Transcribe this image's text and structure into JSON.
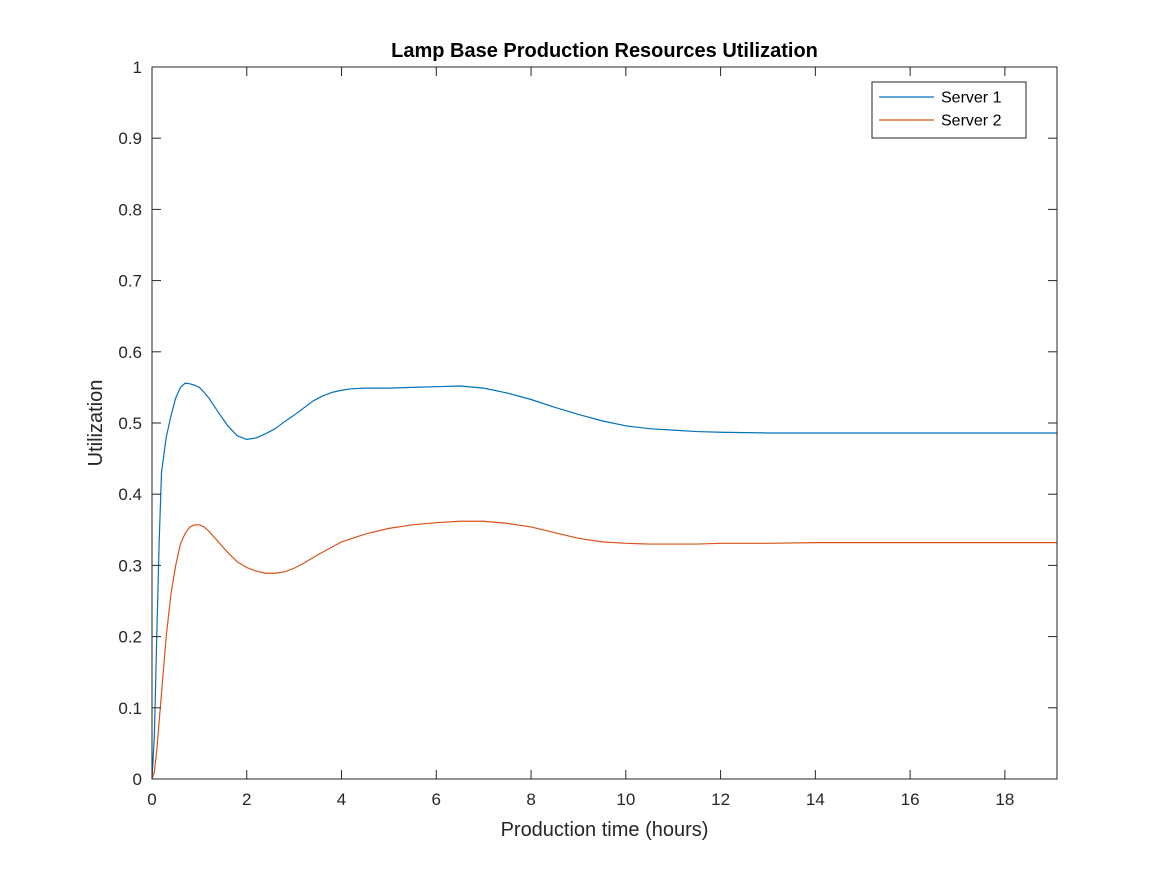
{
  "chart_data": {
    "type": "line",
    "title": "Lamp Base Production Resources Utilization",
    "xlabel": "Production time (hours)",
    "ylabel": "Utilization",
    "xlim": [
      0,
      19.1
    ],
    "ylim": [
      0,
      1
    ],
    "xticks": [
      0,
      2,
      4,
      6,
      8,
      10,
      12,
      14,
      16,
      18
    ],
    "yticks": [
      0,
      0.1,
      0.2,
      0.3,
      0.4,
      0.5,
      0.6,
      0.7,
      0.8,
      0.9,
      1
    ],
    "xtick_labels": [
      "0",
      "2",
      "4",
      "6",
      "8",
      "10",
      "12",
      "14",
      "16",
      "18"
    ],
    "ytick_labels": [
      "0",
      "0.1",
      "0.2",
      "0.3",
      "0.4",
      "0.5",
      "0.6",
      "0.7",
      "0.8",
      "0.9",
      "1"
    ],
    "grid": false,
    "legend_position": "top-right",
    "series": [
      {
        "name": "Server 1",
        "color": "#0072BD",
        "x": [
          0,
          0.05,
          0.1,
          0.15,
          0.2,
          0.3,
          0.4,
          0.5,
          0.6,
          0.7,
          0.8,
          0.9,
          1.0,
          1.1,
          1.2,
          1.4,
          1.6,
          1.8,
          2.0,
          2.2,
          2.4,
          2.6,
          2.8,
          3.0,
          3.2,
          3.4,
          3.6,
          3.8,
          4.0,
          4.2,
          4.5,
          5.0,
          5.5,
          6.0,
          6.5,
          7.0,
          7.5,
          8.0,
          8.5,
          9.0,
          9.5,
          10.0,
          10.5,
          11.0,
          11.5,
          12.0,
          13.0,
          14.0,
          15.0,
          16.0,
          17.0,
          18.0,
          19.1
        ],
        "y": [
          0,
          0.06,
          0.2,
          0.33,
          0.43,
          0.48,
          0.51,
          0.535,
          0.55,
          0.556,
          0.555,
          0.553,
          0.55,
          0.543,
          0.535,
          0.515,
          0.496,
          0.482,
          0.477,
          0.479,
          0.485,
          0.492,
          0.502,
          0.511,
          0.521,
          0.531,
          0.538,
          0.543,
          0.546,
          0.548,
          0.549,
          0.549,
          0.55,
          0.551,
          0.552,
          0.549,
          0.542,
          0.533,
          0.522,
          0.512,
          0.503,
          0.496,
          0.492,
          0.49,
          0.488,
          0.487,
          0.486,
          0.486,
          0.486,
          0.486,
          0.486,
          0.486,
          0.486
        ]
      },
      {
        "name": "Server 2",
        "color": "#D95319",
        "x": [
          0,
          0.05,
          0.1,
          0.2,
          0.3,
          0.4,
          0.5,
          0.6,
          0.7,
          0.8,
          0.9,
          1.0,
          1.1,
          1.2,
          1.4,
          1.6,
          1.8,
          2.0,
          2.2,
          2.4,
          2.6,
          2.8,
          3.0,
          3.2,
          3.5,
          4.0,
          4.5,
          5.0,
          5.5,
          6.0,
          6.5,
          7.0,
          7.5,
          8.0,
          8.5,
          9.0,
          9.5,
          10.0,
          10.5,
          11.0,
          11.5,
          12.0,
          13.0,
          14.0,
          15.0,
          16.0,
          17.0,
          18.0,
          19.1
        ],
        "y": [
          0,
          0.01,
          0.04,
          0.12,
          0.2,
          0.26,
          0.3,
          0.33,
          0.345,
          0.354,
          0.357,
          0.357,
          0.354,
          0.348,
          0.333,
          0.318,
          0.305,
          0.297,
          0.292,
          0.289,
          0.289,
          0.291,
          0.296,
          0.303,
          0.315,
          0.333,
          0.344,
          0.352,
          0.357,
          0.36,
          0.362,
          0.362,
          0.359,
          0.354,
          0.346,
          0.338,
          0.333,
          0.331,
          0.33,
          0.33,
          0.33,
          0.331,
          0.331,
          0.332,
          0.332,
          0.332,
          0.332,
          0.332,
          0.332
        ]
      }
    ]
  }
}
